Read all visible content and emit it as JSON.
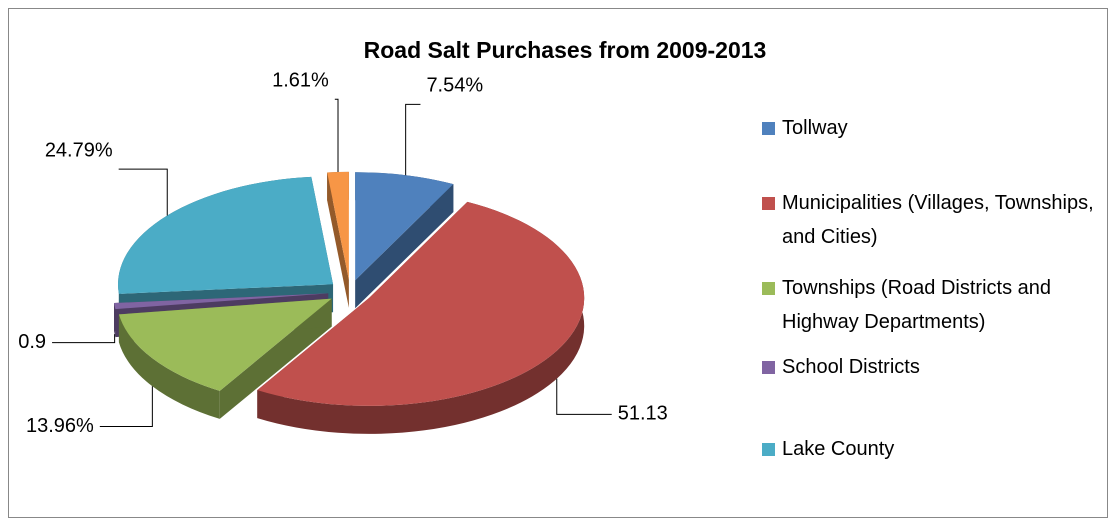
{
  "chart_data": {
    "type": "pie",
    "title": "Road Salt Purchases from 2009-2013",
    "categories": [
      "Tollway",
      "Municipalities (Villages, Townships, and Cities)",
      "Townships (Road Districts and Highway Departments)",
      "School Districts",
      "Lake County",
      null
    ],
    "values": [
      7.54,
      51.13,
      13.96,
      0.9,
      24.79,
      1.61
    ],
    "value_labels": [
      "7.54%",
      "51.13",
      "13.96%",
      "0.9",
      "24.79%",
      "1.61%"
    ],
    "colors": [
      "#4f81bd",
      "#c0504d",
      "#9bbb59",
      "#8064a2",
      "#4bacc6",
      "#f79646"
    ],
    "legend": "right"
  }
}
